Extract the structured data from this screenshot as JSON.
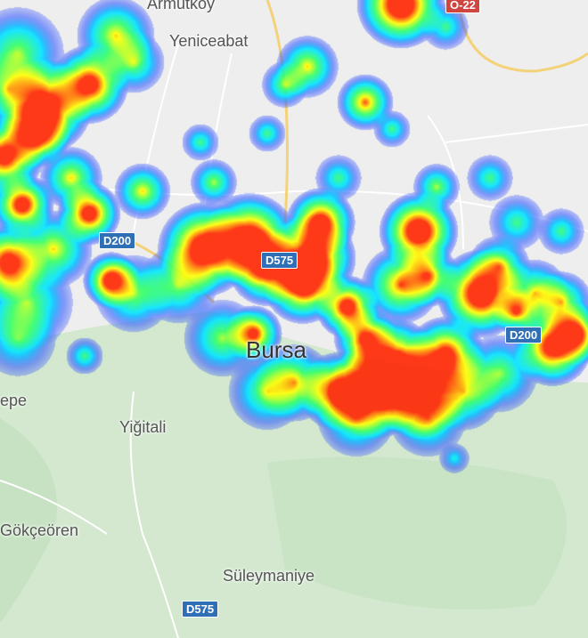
{
  "map": {
    "colors": {
      "land": "#eeeeee",
      "forest": "#cfe6cc",
      "highway": "#f3d27a",
      "road": "#ffffff",
      "motorway_shield": "#d0453f",
      "road_shield": "#2f6fb5"
    },
    "heatmap_gradient": [
      "#3355ff",
      "#00e5ff",
      "#33ff66",
      "#ffff00",
      "#ff2200"
    ],
    "places": [
      {
        "name": "Armutköy"
      },
      {
        "name": "Yeniceabat"
      },
      {
        "name": "Bursa"
      },
      {
        "name": "Yiğitali"
      },
      {
        "name": "Gökçeören"
      },
      {
        "name": "Süleymaniye"
      },
      {
        "name": "epe"
      }
    ],
    "shields": [
      {
        "ref": "O-22"
      },
      {
        "ref": "D200"
      },
      {
        "ref": "D575"
      },
      {
        "ref": "D200"
      },
      {
        "ref": "D575"
      }
    ]
  }
}
